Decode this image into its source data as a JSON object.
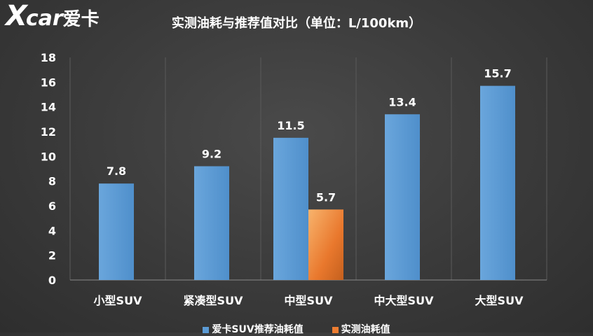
{
  "logo": {
    "x": "X",
    "car": "car",
    "cn": "爱卡"
  },
  "header": {
    "partial_title": "",
    "title": "实测油耗与推荐值对比（单位：L/100km）"
  },
  "chart_data": {
    "type": "bar",
    "categories": [
      "小型SUV",
      "紧凑型SUV",
      "中型SUV",
      "中大型SUV",
      "大型SUV"
    ],
    "series": [
      {
        "name": "爱卡SUV推荐油耗值",
        "values": [
          7.8,
          9.2,
          11.5,
          13.4,
          15.7
        ],
        "color": "#5b9bd5"
      },
      {
        "name": "实测油耗值",
        "values": [
          null,
          null,
          5.7,
          null,
          null
        ],
        "color": "#ed7d31"
      }
    ],
    "title": "实测油耗与推荐值对比（单位：L/100km）",
    "xlabel": "",
    "ylabel": "",
    "ylim": [
      0,
      18
    ],
    "yticks": [
      0,
      2,
      4,
      6,
      8,
      10,
      12,
      14,
      16,
      18
    ],
    "grid": "vertical-category-separators",
    "legend": "bottom-center"
  }
}
